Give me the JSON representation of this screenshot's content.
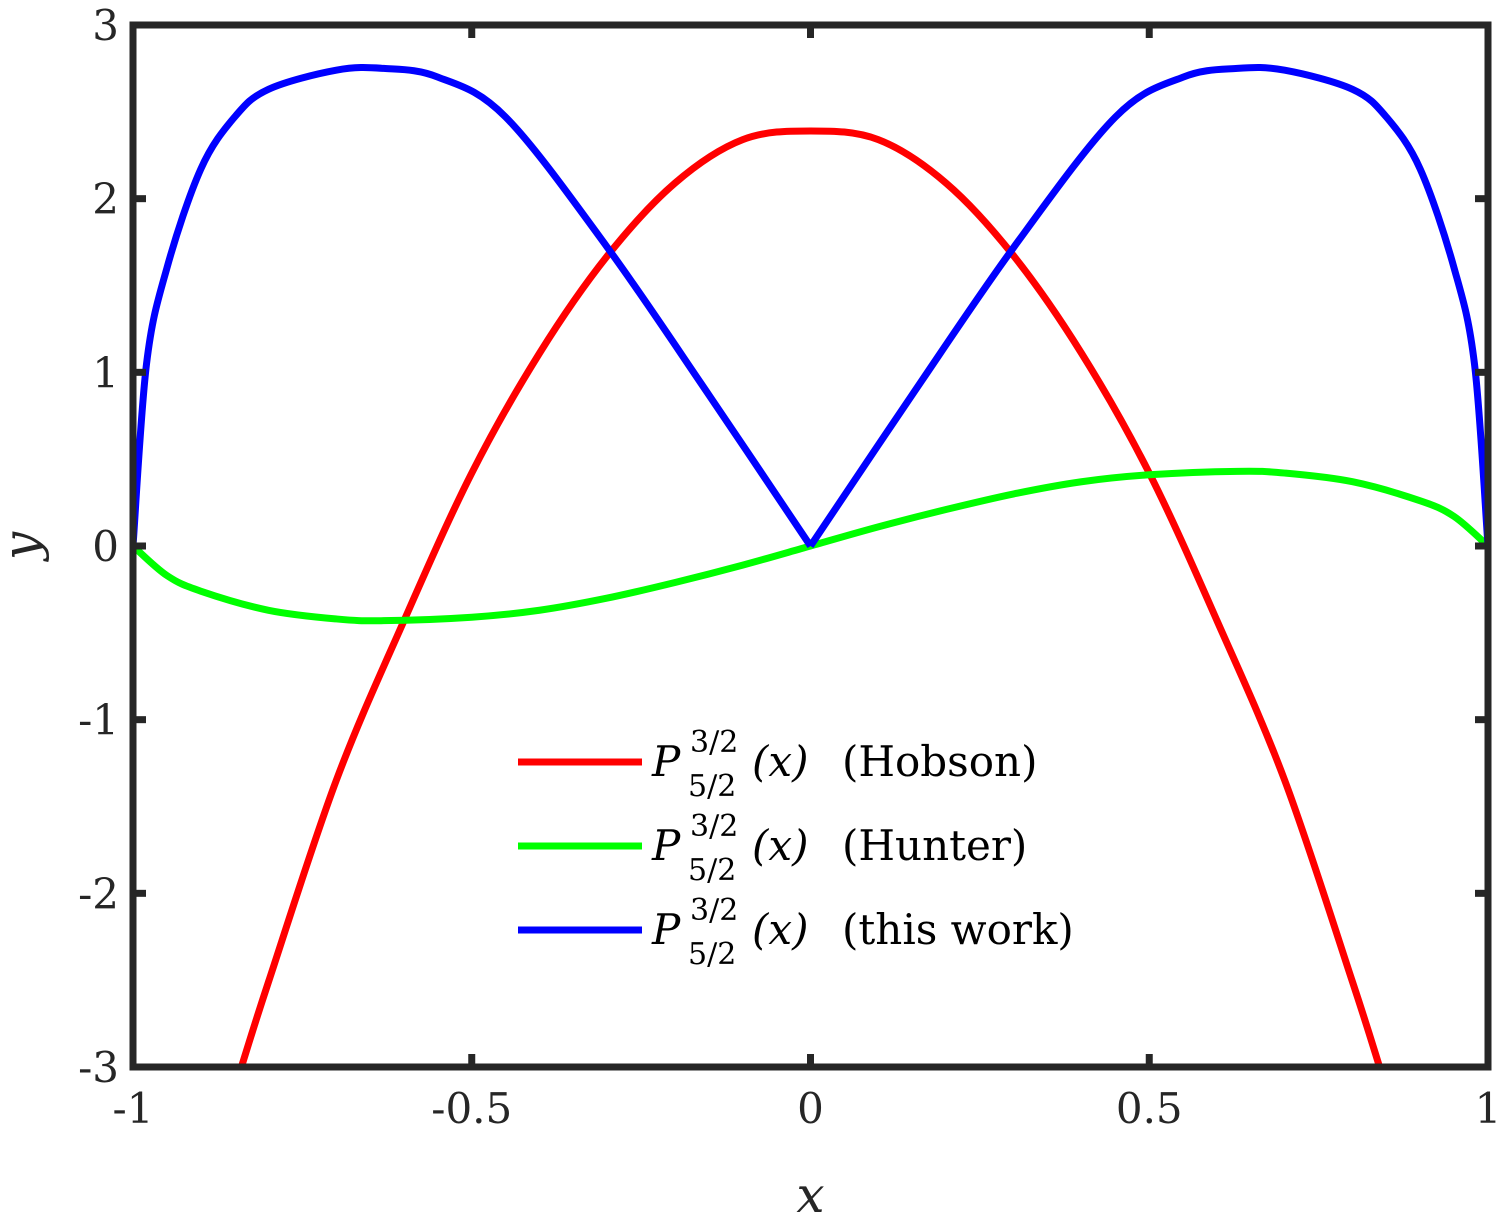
{
  "chart_data": {
    "type": "line",
    "xlabel": "x",
    "ylabel": "y",
    "xlim": [
      -1,
      1
    ],
    "ylim": [
      -3,
      3
    ],
    "xticks": [
      -1,
      -0.5,
      0,
      0.5,
      1
    ],
    "xtick_labels": [
      "-1",
      "-0.5",
      "0",
      "0.5",
      "1"
    ],
    "yticks": [
      -3,
      -2,
      -1,
      0,
      1,
      2,
      3
    ],
    "ytick_labels": [
      "-3",
      "-2",
      "-1",
      "0",
      "1",
      "2",
      "3"
    ],
    "grid": false,
    "legend_position": "bottom-center",
    "series": [
      {
        "name": "(Hobson)",
        "color": "#ff0000",
        "x": [
          -0.84,
          -0.8,
          -0.7,
          -0.6,
          -0.5,
          -0.4,
          -0.3,
          -0.2,
          -0.1,
          0,
          0.1,
          0.2,
          0.3,
          0.4,
          0.5,
          0.6,
          0.7,
          0.8,
          0.84
        ],
        "y": [
          -3.0,
          -2.51,
          -1.35,
          -0.43,
          0.42,
          1.11,
          1.67,
          2.09,
          2.34,
          2.39,
          2.34,
          2.09,
          1.67,
          1.11,
          0.42,
          -0.43,
          -1.35,
          -2.51,
          -3.0
        ]
      },
      {
        "name": "(Hunter)",
        "color": "#00ff00",
        "x": [
          -1,
          -0.95,
          -0.9,
          -0.8,
          -0.7,
          -0.63,
          -0.5,
          -0.4,
          -0.3,
          -0.2,
          -0.1,
          0,
          0.1,
          0.2,
          0.3,
          0.4,
          0.5,
          0.63,
          0.7,
          0.8,
          0.9,
          0.95,
          1
        ],
        "y": [
          0,
          -0.17,
          -0.26,
          -0.37,
          -0.42,
          -0.43,
          -0.41,
          -0.37,
          -0.3,
          -0.21,
          -0.11,
          0,
          0.11,
          0.21,
          0.3,
          0.37,
          0.41,
          0.43,
          0.42,
          0.37,
          0.26,
          0.17,
          0
        ]
      },
      {
        "name": "(this work)",
        "color": "#0000ff",
        "x": [
          -1,
          -0.98,
          -0.95,
          -0.9,
          -0.85,
          -0.8,
          -0.7,
          -0.63,
          -0.55,
          -0.45,
          -0.3,
          -0.15,
          0,
          0.15,
          0.3,
          0.45,
          0.55,
          0.63,
          0.7,
          0.8,
          0.85,
          0.9,
          0.95,
          0.98,
          1
        ],
        "y": [
          0,
          1.05,
          1.6,
          2.17,
          2.47,
          2.63,
          2.74,
          2.75,
          2.7,
          2.47,
          1.72,
          0.87,
          0,
          0.87,
          1.72,
          2.47,
          2.7,
          2.75,
          2.74,
          2.63,
          2.47,
          2.17,
          1.6,
          1.05,
          0
        ]
      }
    ],
    "legend": {
      "math_base": "P",
      "math_sup": "3/2",
      "math_sub": "5/2",
      "math_arg": "(x)",
      "entries": [
        "(Hobson)",
        "(Hunter)",
        "(this work)"
      ]
    }
  }
}
